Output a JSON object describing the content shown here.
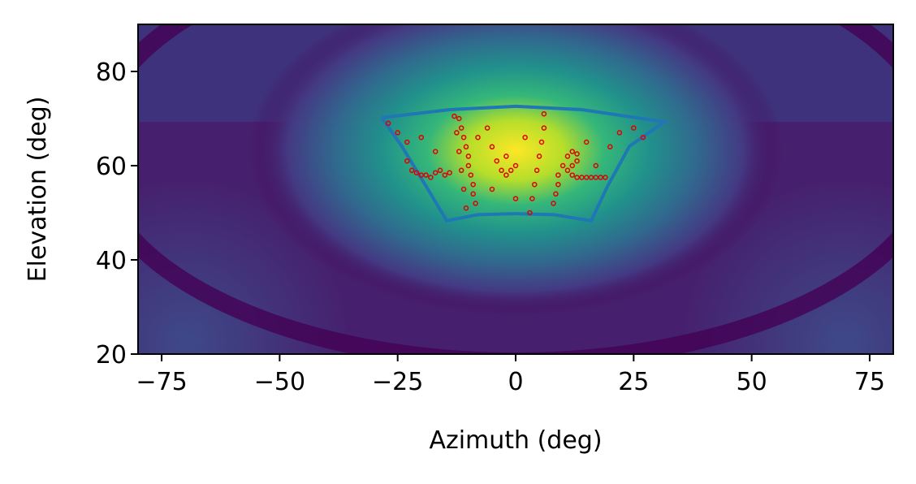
{
  "chart_data": {
    "type": "scatter",
    "xlabel": "Azimuth (deg)",
    "ylabel": "Elevation (deg)",
    "xlim": [
      -80,
      80
    ],
    "ylim": [
      20,
      90
    ],
    "xticks": [
      {
        "value": -75,
        "label": "−75"
      },
      {
        "value": -50,
        "label": "−50"
      },
      {
        "value": -25,
        "label": "−25"
      },
      0,
      25,
      50,
      75
    ],
    "yticks": [
      20,
      40,
      60,
      80
    ],
    "series": [
      {
        "style": "line",
        "color": "#1f77b4",
        "x": [
          -28.4,
          -14,
          0,
          14,
          31.5,
          24.1,
          19.4,
          16,
          8,
          0,
          -8,
          -14.6,
          -18.9,
          -24.1,
          -28.4
        ],
        "y": [
          70.2,
          71.9,
          72.6,
          71.9,
          69.3,
          64.1,
          55.5,
          48.3,
          49.6,
          49.8,
          49.6,
          48.3,
          55.5,
          64.1,
          70.2
        ]
      },
      {
        "style": "points",
        "color": "#e00000",
        "x": [
          -23,
          -22,
          -21,
          -20,
          -19,
          -18,
          -17,
          -16,
          -15,
          -14,
          -12,
          -11.5,
          -11,
          -10.5,
          -10,
          -10,
          -9.5,
          -9,
          -9,
          -8.5,
          -13,
          -12.5,
          -12,
          -11.5,
          -11,
          -10.5,
          -6,
          -5,
          -4,
          -3,
          -2,
          -1,
          0,
          -2,
          6,
          6,
          5.5,
          5,
          4.5,
          4,
          3.5,
          3,
          10,
          11,
          12,
          13,
          13,
          12,
          11,
          12,
          13,
          14,
          15,
          16,
          17,
          18,
          19,
          9,
          8.5,
          8,
          9,
          -27,
          -25,
          -23,
          22,
          25,
          27,
          20,
          -20,
          -17,
          15,
          17,
          -5,
          0,
          2,
          -8
        ],
        "y": [
          61,
          59,
          58.5,
          58,
          58,
          57.5,
          58.5,
          59,
          58,
          58.5,
          70,
          68,
          66,
          64,
          62,
          60,
          58,
          56,
          54,
          52,
          70.5,
          67,
          63,
          59,
          55,
          51,
          68,
          64,
          61,
          59,
          58,
          59,
          60,
          62,
          71,
          68,
          65,
          62,
          59,
          56,
          53,
          50,
          60,
          62,
          63,
          62.5,
          61,
          60,
          59,
          58,
          57.5,
          57.5,
          57.5,
          57.5,
          57.5,
          57.5,
          57.5,
          56,
          54,
          52,
          58,
          69,
          67,
          65,
          67,
          68,
          66,
          64,
          66,
          63,
          65,
          60,
          55,
          53,
          66,
          66
        ]
      }
    ]
  }
}
